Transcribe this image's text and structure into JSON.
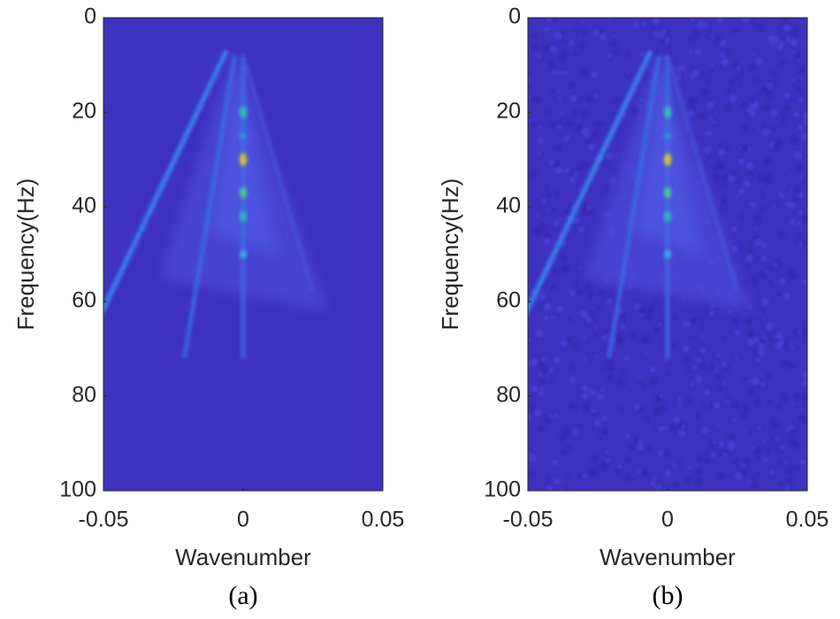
{
  "chart_data": [
    {
      "type": "heatmap",
      "xlabel": "Wavenumber",
      "ylabel": "Frequency(Hz)",
      "caption": "(a)",
      "xlim": [
        -0.05,
        0.05
      ],
      "xticks": [
        -0.05,
        0,
        0.05
      ],
      "ylim": [
        0,
        100
      ],
      "yticks": [
        0,
        20,
        40,
        60,
        80,
        100
      ],
      "y_reversed": true
    },
    {
      "type": "heatmap",
      "xlabel": "Wavenumber",
      "ylabel": "Frequency(Hz)",
      "caption": "(b)",
      "xlim": [
        -0.05,
        0.05
      ],
      "xticks": [
        -0.05,
        0,
        0.05
      ],
      "ylim": [
        0,
        100
      ],
      "yticks": [
        0,
        20,
        40,
        60,
        80,
        100
      ],
      "y_reversed": true
    }
  ]
}
